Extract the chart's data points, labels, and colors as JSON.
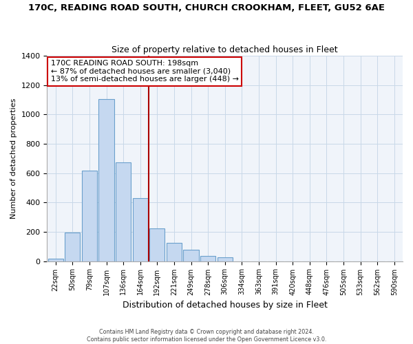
{
  "title": "170C, READING ROAD SOUTH, CHURCH CROOKHAM, FLEET, GU52 6AE",
  "subtitle": "Size of property relative to detached houses in Fleet",
  "xlabel": "Distribution of detached houses by size in Fleet",
  "ylabel": "Number of detached properties",
  "bar_labels": [
    "22sqm",
    "50sqm",
    "79sqm",
    "107sqm",
    "136sqm",
    "164sqm",
    "192sqm",
    "221sqm",
    "249sqm",
    "278sqm",
    "306sqm",
    "334sqm",
    "363sqm",
    "391sqm",
    "420sqm",
    "448sqm",
    "476sqm",
    "505sqm",
    "533sqm",
    "562sqm",
    "590sqm"
  ],
  "bar_heights": [
    15,
    195,
    615,
    1105,
    675,
    430,
    225,
    125,
    80,
    35,
    25,
    0,
    0,
    0,
    0,
    0,
    0,
    0,
    0,
    0,
    0
  ],
  "bar_color": "#c5d8f0",
  "bar_edge_color": "#6aa0cc",
  "vline_color": "#aa0000",
  "annotation_title": "170C READING ROAD SOUTH: 198sqm",
  "annotation_line1": "← 87% of detached houses are smaller (3,040)",
  "annotation_line2": "13% of semi-detached houses are larger (448) →",
  "annotation_box_color": "#ffffff",
  "annotation_box_edge": "#cc0000",
  "ylim": [
    0,
    1400
  ],
  "yticks": [
    0,
    200,
    400,
    600,
    800,
    1000,
    1200,
    1400
  ],
  "grid_color": "#c8d8e8",
  "footer1": "Contains HM Land Registry data © Crown copyright and database right 2024.",
  "footer2": "Contains public sector information licensed under the Open Government Licence v3.0."
}
